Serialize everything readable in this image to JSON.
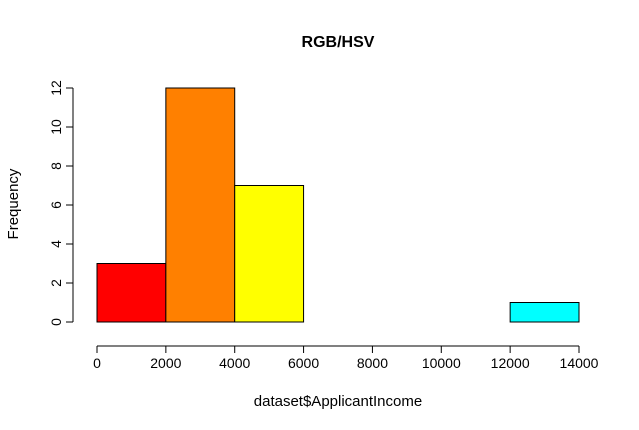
{
  "chart_data": {
    "type": "bar",
    "title": "RGB/HSV",
    "xlabel": "dataset$ApplicantIncome",
    "ylabel": "Frequency",
    "bins": [
      {
        "from": 0,
        "to": 2000,
        "count": 3,
        "color": "#FF0000"
      },
      {
        "from": 2000,
        "to": 4000,
        "count": 12,
        "color": "#FF8000"
      },
      {
        "from": 4000,
        "to": 6000,
        "count": 7,
        "color": "#FFFF00"
      },
      {
        "from": 6000,
        "to": 8000,
        "count": 0,
        "color": "#00FF00"
      },
      {
        "from": 8000,
        "to": 10000,
        "count": 0,
        "color": "#00FF80"
      },
      {
        "from": 10000,
        "to": 12000,
        "count": 0,
        "color": "#00FFFF"
      },
      {
        "from": 12000,
        "to": 14000,
        "count": 1,
        "color": "#00FFFF"
      }
    ],
    "xticks": [
      "0",
      "2000",
      "4000",
      "6000",
      "8000",
      "10000",
      "12000",
      "14000"
    ],
    "yticks": [
      "0",
      "2",
      "4",
      "6",
      "8",
      "10",
      "12"
    ],
    "xlim": [
      0,
      14000
    ],
    "ylim": [
      0,
      12
    ],
    "grid": false,
    "legend": "none"
  }
}
